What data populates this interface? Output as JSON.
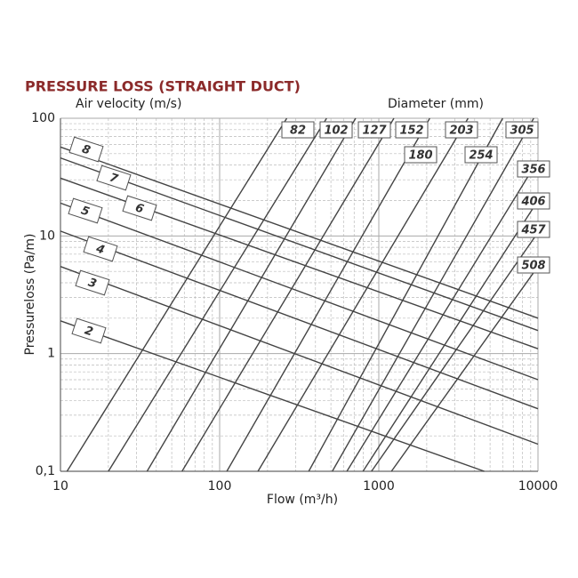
{
  "chart_data": {
    "type": "line",
    "title": "PRESSURE LOSS (STRAIGHT DUCT)",
    "velocity_label": "Air velocity (m/s)",
    "diameter_label": "Diameter (mm)",
    "xlabel": "Flow (m³/h)",
    "ylabel": "Pressureloss (Pa/m)",
    "log_x": true,
    "log_y": true,
    "grid": true,
    "minor_grid": true,
    "xlim": [
      10,
      10000
    ],
    "ylim": [
      0.1,
      100
    ],
    "xticks": [
      10,
      100,
      1000,
      10000
    ],
    "yticks": [
      {
        "value": 0.1,
        "label": "0,1"
      },
      1,
      10,
      100
    ],
    "color": "#444444",
    "velocity_lines": [
      {
        "name": "8",
        "x": [
          10,
          10000
        ],
        "values": [
          57,
          2.0
        ]
      },
      {
        "name": "7",
        "x": [
          10,
          10000
        ],
        "values": [
          46,
          1.57
        ]
      },
      {
        "name": "6",
        "x": [
          10,
          10000
        ],
        "values": [
          31,
          1.1
        ]
      },
      {
        "name": "5",
        "x": [
          10,
          10000
        ],
        "values": [
          19,
          0.6
        ]
      },
      {
        "name": "4",
        "x": [
          10,
          10000
        ],
        "values": [
          11,
          0.34
        ]
      },
      {
        "name": "3",
        "x": [
          10,
          10000
        ],
        "values": [
          5.5,
          0.17
        ]
      },
      {
        "name": "2",
        "x": [
          10,
          4600
        ],
        "values": [
          1.9,
          0.1
        ]
      }
    ],
    "diameter_lines": [
      {
        "name": "82",
        "x": [
          11,
          264
        ],
        "values": [
          0.1,
          100
        ]
      },
      {
        "name": "102",
        "x": [
          20,
          470
        ],
        "values": [
          0.1,
          100
        ]
      },
      {
        "name": "127",
        "x": [
          35,
          716
        ],
        "values": [
          0.1,
          100
        ]
      },
      {
        "name": "152",
        "x": [
          58,
          1245
        ],
        "values": [
          0.1,
          100
        ]
      },
      {
        "name": "180",
        "x": [
          111,
          2090
        ],
        "values": [
          0.1,
          100
        ]
      },
      {
        "name": "203",
        "x": [
          174,
          3640
        ],
        "values": [
          0.1,
          100
        ]
      },
      {
        "name": "254",
        "x": [
          363,
          6000
        ],
        "values": [
          0.1,
          100
        ]
      },
      {
        "name": "305",
        "x": [
          510,
          9400
        ],
        "values": [
          0.1,
          100
        ]
      },
      {
        "name": "356",
        "x": [
          630,
          10000
        ],
        "values": [
          0.1,
          44
        ]
      },
      {
        "name": "406",
        "x": [
          795,
          10000
        ],
        "values": [
          0.1,
          20
        ]
      },
      {
        "name": "457",
        "x": [
          900,
          10000
        ],
        "values": [
          0.1,
          10.7
        ]
      },
      {
        "name": "508",
        "x": [
          1200,
          10000
        ],
        "values": [
          0.1,
          5.5
        ]
      }
    ]
  }
}
